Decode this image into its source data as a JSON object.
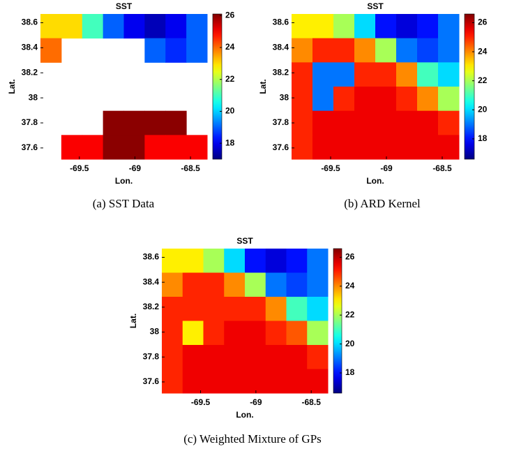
{
  "chart_data": [
    {
      "type": "heatmap",
      "title": "SST",
      "xlabel": "Lon.",
      "ylabel": "Lat.",
      "caption": "(a) SST Data",
      "xlim": [
        -69.85,
        -68.35
      ],
      "ylim": [
        37.51,
        38.67
      ],
      "xticks": [
        -69.5,
        -69,
        -68.5
      ],
      "yticks": [
        37.6,
        37.8,
        38,
        38.2,
        38.4,
        38.6
      ],
      "clim": [
        17.0,
        26.1
      ],
      "cticks": [
        18,
        20,
        22,
        24,
        26
      ],
      "colormap": "jet",
      "z": [
        [
          23,
          23,
          21,
          19,
          18,
          17.5,
          18,
          19
        ],
        [
          24,
          null,
          null,
          null,
          null,
          19,
          18.5,
          19
        ],
        [
          null,
          null,
          null,
          null,
          null,
          null,
          null,
          null
        ],
        [
          null,
          null,
          null,
          null,
          null,
          null,
          null,
          null
        ],
        [
          null,
          null,
          null,
          26,
          26,
          26,
          26,
          null
        ],
        [
          null,
          25,
          25,
          26,
          26,
          25,
          25,
          25
        ]
      ]
    },
    {
      "type": "heatmap",
      "title": "SST",
      "xlabel": "Lon.",
      "ylabel": "Lat.",
      "caption": "(b) ARD Kernel",
      "xlim": [
        -69.85,
        -68.35
      ],
      "ylim": [
        37.51,
        38.67
      ],
      "xticks": [
        -69.5,
        -69,
        -68.5
      ],
      "yticks": [
        37.6,
        37.8,
        38,
        38.2,
        38.4,
        38.6
      ],
      "clim": [
        16.6,
        26.6
      ],
      "cticks": [
        18,
        20,
        22,
        24,
        26
      ],
      "colormap": "jet",
      "z": [
        [
          23,
          23,
          22,
          20,
          18,
          17.5,
          18,
          19
        ],
        [
          24,
          25,
          25,
          24,
          22,
          19,
          18.5,
          19
        ],
        [
          25,
          19,
          19,
          25,
          25,
          24,
          21,
          20
        ],
        [
          25,
          19,
          25,
          25.5,
          25.5,
          25,
          24,
          22
        ],
        [
          25,
          25.5,
          25.5,
          25.5,
          25.5,
          25.5,
          25.5,
          25
        ],
        [
          25,
          25.5,
          25.5,
          25.5,
          25.5,
          25.5,
          25.5,
          25.5
        ]
      ]
    },
    {
      "type": "heatmap",
      "title": "SST",
      "xlabel": "Lon.",
      "ylabel": "Lat.",
      "caption": "(c) Weighted Mixture of GPs",
      "xlim": [
        -69.85,
        -68.35
      ],
      "ylim": [
        37.51,
        38.67
      ],
      "xticks": [
        -69.5,
        -69,
        -68.5
      ],
      "yticks": [
        37.6,
        37.8,
        38,
        38.2,
        38.4,
        38.6
      ],
      "clim": [
        16.6,
        26.6
      ],
      "cticks": [
        18,
        20,
        22,
        24,
        26
      ],
      "colormap": "jet",
      "z": [
        [
          23,
          23,
          22,
          20,
          18,
          17.5,
          18,
          19
        ],
        [
          24,
          25,
          25,
          24,
          22,
          19,
          18.5,
          19
        ],
        [
          25,
          25,
          25,
          25,
          25,
          24,
          21,
          20
        ],
        [
          25,
          23,
          25,
          25.5,
          25.5,
          25,
          24.5,
          22
        ],
        [
          25,
          25.5,
          25.5,
          25.5,
          25.5,
          25.5,
          25.5,
          25
        ],
        [
          25,
          25.5,
          25.5,
          25.5,
          25.5,
          25.5,
          25.5,
          25.5
        ]
      ]
    }
  ]
}
